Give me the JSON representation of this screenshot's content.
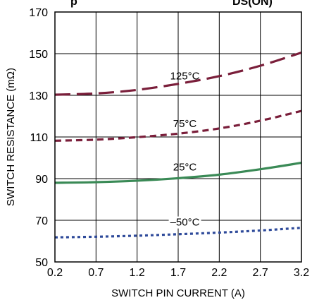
{
  "top_text": {
    "left": "p",
    "right": "DS(ON)"
  },
  "chart_data": {
    "type": "line",
    "xlabel": "SWITCH PIN CURRENT (A)",
    "ylabel": "SWITCH RESISTANCE (mΩ)",
    "xlim": [
      0.2,
      3.2
    ],
    "ylim": [
      50,
      170
    ],
    "xticks": [
      "0.2",
      "0.7",
      "1.2",
      "1.7",
      "2.2",
      "2.7",
      "3.2"
    ],
    "yticks": [
      "50",
      "70",
      "90",
      "110",
      "130",
      "150",
      "170"
    ],
    "grid": true,
    "series": [
      {
        "name": "125°C",
        "color": "#7a1e3a",
        "style": "long-dash",
        "x": [
          0.2,
          0.7,
          1.2,
          1.7,
          2.2,
          2.7,
          3.2
        ],
        "y": [
          130.3,
          130.9,
          132.6,
          135.5,
          139.2,
          144.2,
          150.5
        ]
      },
      {
        "name": "75°C",
        "color": "#7a1e3a",
        "style": "short-dash",
        "x": [
          0.2,
          0.7,
          1.2,
          1.7,
          2.2,
          2.7,
          3.2
        ],
        "y": [
          108.2,
          108.7,
          109.9,
          111.6,
          114.1,
          117.8,
          122.5
        ]
      },
      {
        "name": "25°C",
        "color": "#3a8a56",
        "style": "solid",
        "x": [
          0.2,
          0.7,
          1.2,
          1.7,
          2.2,
          2.7,
          3.2
        ],
        "y": [
          88.0,
          88.3,
          89.0,
          90.2,
          91.9,
          94.5,
          97.6
        ]
      },
      {
        "name": "–50°C",
        "color": "#2e4a9a",
        "style": "dotted",
        "x": [
          0.2,
          0.7,
          1.2,
          1.7,
          2.2,
          2.7,
          3.2
        ],
        "y": [
          61.8,
          62.1,
          62.6,
          63.3,
          64.1,
          65.1,
          66.4
        ]
      }
    ]
  }
}
